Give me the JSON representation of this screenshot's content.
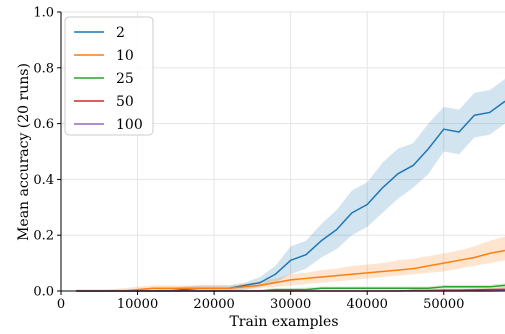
{
  "chart_data": {
    "type": "line",
    "xlabel": "Train examples",
    "ylabel": "Mean accuracy (20 runs)",
    "xlim": [
      0,
      58000
    ],
    "ylim": [
      0,
      1.0
    ],
    "x_ticks": [
      0,
      10000,
      20000,
      30000,
      40000,
      50000
    ],
    "y_ticks": [
      0.0,
      0.2,
      0.4,
      0.6,
      0.8,
      1.0
    ],
    "y_tick_labels": [
      "0.0",
      "0.2",
      "0.4",
      "0.6",
      "0.8",
      "1.0"
    ],
    "grid": true,
    "legend_position": "top-left",
    "x": [
      2000,
      4000,
      6000,
      8000,
      10000,
      12000,
      14000,
      16000,
      18000,
      20000,
      22000,
      24000,
      26000,
      28000,
      30000,
      32000,
      34000,
      36000,
      38000,
      40000,
      42000,
      44000,
      46000,
      48000,
      50000,
      52000,
      54000,
      56000,
      58000
    ],
    "series": [
      {
        "name": "2",
        "color": "#1f77b4",
        "values": [
          0,
          0,
          0,
          0,
          0,
          0,
          0,
          0.005,
          0.01,
          0.01,
          0.01,
          0.02,
          0.03,
          0.06,
          0.11,
          0.13,
          0.18,
          0.22,
          0.28,
          0.31,
          0.37,
          0.42,
          0.45,
          0.51,
          0.58,
          0.57,
          0.63,
          0.64,
          0.68
        ],
        "lower": [
          0,
          0,
          0,
          0,
          0,
          0,
          0,
          0,
          0,
          0,
          0,
          0.005,
          0.015,
          0.03,
          0.06,
          0.08,
          0.12,
          0.15,
          0.2,
          0.23,
          0.28,
          0.33,
          0.37,
          0.42,
          0.5,
          0.49,
          0.55,
          0.56,
          0.6
        ],
        "upper": [
          0.005,
          0.005,
          0.005,
          0.005,
          0.005,
          0.005,
          0.01,
          0.015,
          0.02,
          0.02,
          0.02,
          0.03,
          0.05,
          0.09,
          0.16,
          0.18,
          0.24,
          0.29,
          0.36,
          0.39,
          0.46,
          0.51,
          0.53,
          0.6,
          0.66,
          0.65,
          0.71,
          0.72,
          0.76
        ]
      },
      {
        "name": "10",
        "color": "#ff7f0e",
        "values": [
          0,
          0,
          0,
          0,
          0.005,
          0.01,
          0.01,
          0.01,
          0.01,
          0.01,
          0.01,
          0.015,
          0.02,
          0.03,
          0.04,
          0.045,
          0.05,
          0.055,
          0.06,
          0.065,
          0.07,
          0.075,
          0.08,
          0.09,
          0.1,
          0.11,
          0.12,
          0.135,
          0.145
        ],
        "lower": [
          0,
          0,
          0,
          0,
          0,
          0,
          0,
          0,
          0,
          0,
          0,
          0.005,
          0.01,
          0.015,
          0.02,
          0.025,
          0.03,
          0.035,
          0.04,
          0.045,
          0.05,
          0.055,
          0.06,
          0.065,
          0.07,
          0.08,
          0.09,
          0.1,
          0.11
        ],
        "upper": [
          0.005,
          0.005,
          0.005,
          0.01,
          0.015,
          0.02,
          0.02,
          0.02,
          0.02,
          0.02,
          0.02,
          0.025,
          0.035,
          0.045,
          0.06,
          0.065,
          0.075,
          0.08,
          0.09,
          0.095,
          0.1,
          0.11,
          0.115,
          0.125,
          0.135,
          0.145,
          0.16,
          0.18,
          0.195
        ]
      },
      {
        "name": "25",
        "color": "#2ca02c",
        "values": [
          0,
          0,
          0,
          0,
          0,
          0,
          0,
          0,
          0,
          0,
          0,
          0,
          0,
          0.005,
          0.005,
          0.005,
          0.01,
          0.01,
          0.01,
          0.01,
          0.01,
          0.01,
          0.01,
          0.01,
          0.015,
          0.015,
          0.015,
          0.015,
          0.02
        ],
        "lower": [
          0,
          0,
          0,
          0,
          0,
          0,
          0,
          0,
          0,
          0,
          0,
          0,
          0,
          0,
          0,
          0,
          0.005,
          0.005,
          0.005,
          0.005,
          0.005,
          0.005,
          0.005,
          0.005,
          0.008,
          0.008,
          0.008,
          0.008,
          0.01
        ],
        "upper": [
          0.002,
          0.002,
          0.002,
          0.002,
          0.002,
          0.002,
          0.002,
          0.002,
          0.002,
          0.002,
          0.003,
          0.004,
          0.006,
          0.01,
          0.01,
          0.012,
          0.016,
          0.016,
          0.016,
          0.016,
          0.016,
          0.016,
          0.016,
          0.016,
          0.022,
          0.022,
          0.022,
          0.022,
          0.028
        ]
      },
      {
        "name": "50",
        "color": "#d62728",
        "values": [
          0,
          0,
          0,
          0,
          0,
          0,
          0,
          0,
          0,
          0,
          0,
          0,
          0,
          0,
          0,
          0,
          0,
          0,
          0,
          0,
          0,
          0,
          0.002,
          0.002,
          0.003,
          0.003,
          0.004,
          0.005,
          0.006
        ],
        "lower": [
          0,
          0,
          0,
          0,
          0,
          0,
          0,
          0,
          0,
          0,
          0,
          0,
          0,
          0,
          0,
          0,
          0,
          0,
          0,
          0,
          0,
          0,
          0,
          0,
          0,
          0,
          0,
          0,
          0
        ],
        "upper": [
          0.001,
          0.001,
          0.001,
          0.001,
          0.001,
          0.001,
          0.001,
          0.001,
          0.001,
          0.001,
          0.001,
          0.001,
          0.001,
          0.001,
          0.001,
          0.001,
          0.001,
          0.001,
          0.001,
          0.002,
          0.002,
          0.003,
          0.004,
          0.005,
          0.006,
          0.006,
          0.008,
          0.01,
          0.012
        ]
      },
      {
        "name": "100",
        "color": "#9467bd",
        "values": [
          0,
          0,
          0,
          0,
          0,
          0,
          0,
          0,
          0,
          0,
          0,
          0,
          0,
          0,
          0,
          0,
          0,
          0,
          0,
          0,
          0,
          0,
          0,
          0,
          0,
          0,
          0,
          0,
          0.001
        ],
        "lower": [
          0,
          0,
          0,
          0,
          0,
          0,
          0,
          0,
          0,
          0,
          0,
          0,
          0,
          0,
          0,
          0,
          0,
          0,
          0,
          0,
          0,
          0,
          0,
          0,
          0,
          0,
          0,
          0,
          0
        ],
        "upper": [
          0.001,
          0.001,
          0.001,
          0.001,
          0.001,
          0.001,
          0.001,
          0.001,
          0.001,
          0.001,
          0.001,
          0.001,
          0.001,
          0.001,
          0.001,
          0.001,
          0.001,
          0.001,
          0.001,
          0.001,
          0.001,
          0.001,
          0.001,
          0.001,
          0.001,
          0.001,
          0.001,
          0.001,
          0.002
        ]
      }
    ]
  }
}
